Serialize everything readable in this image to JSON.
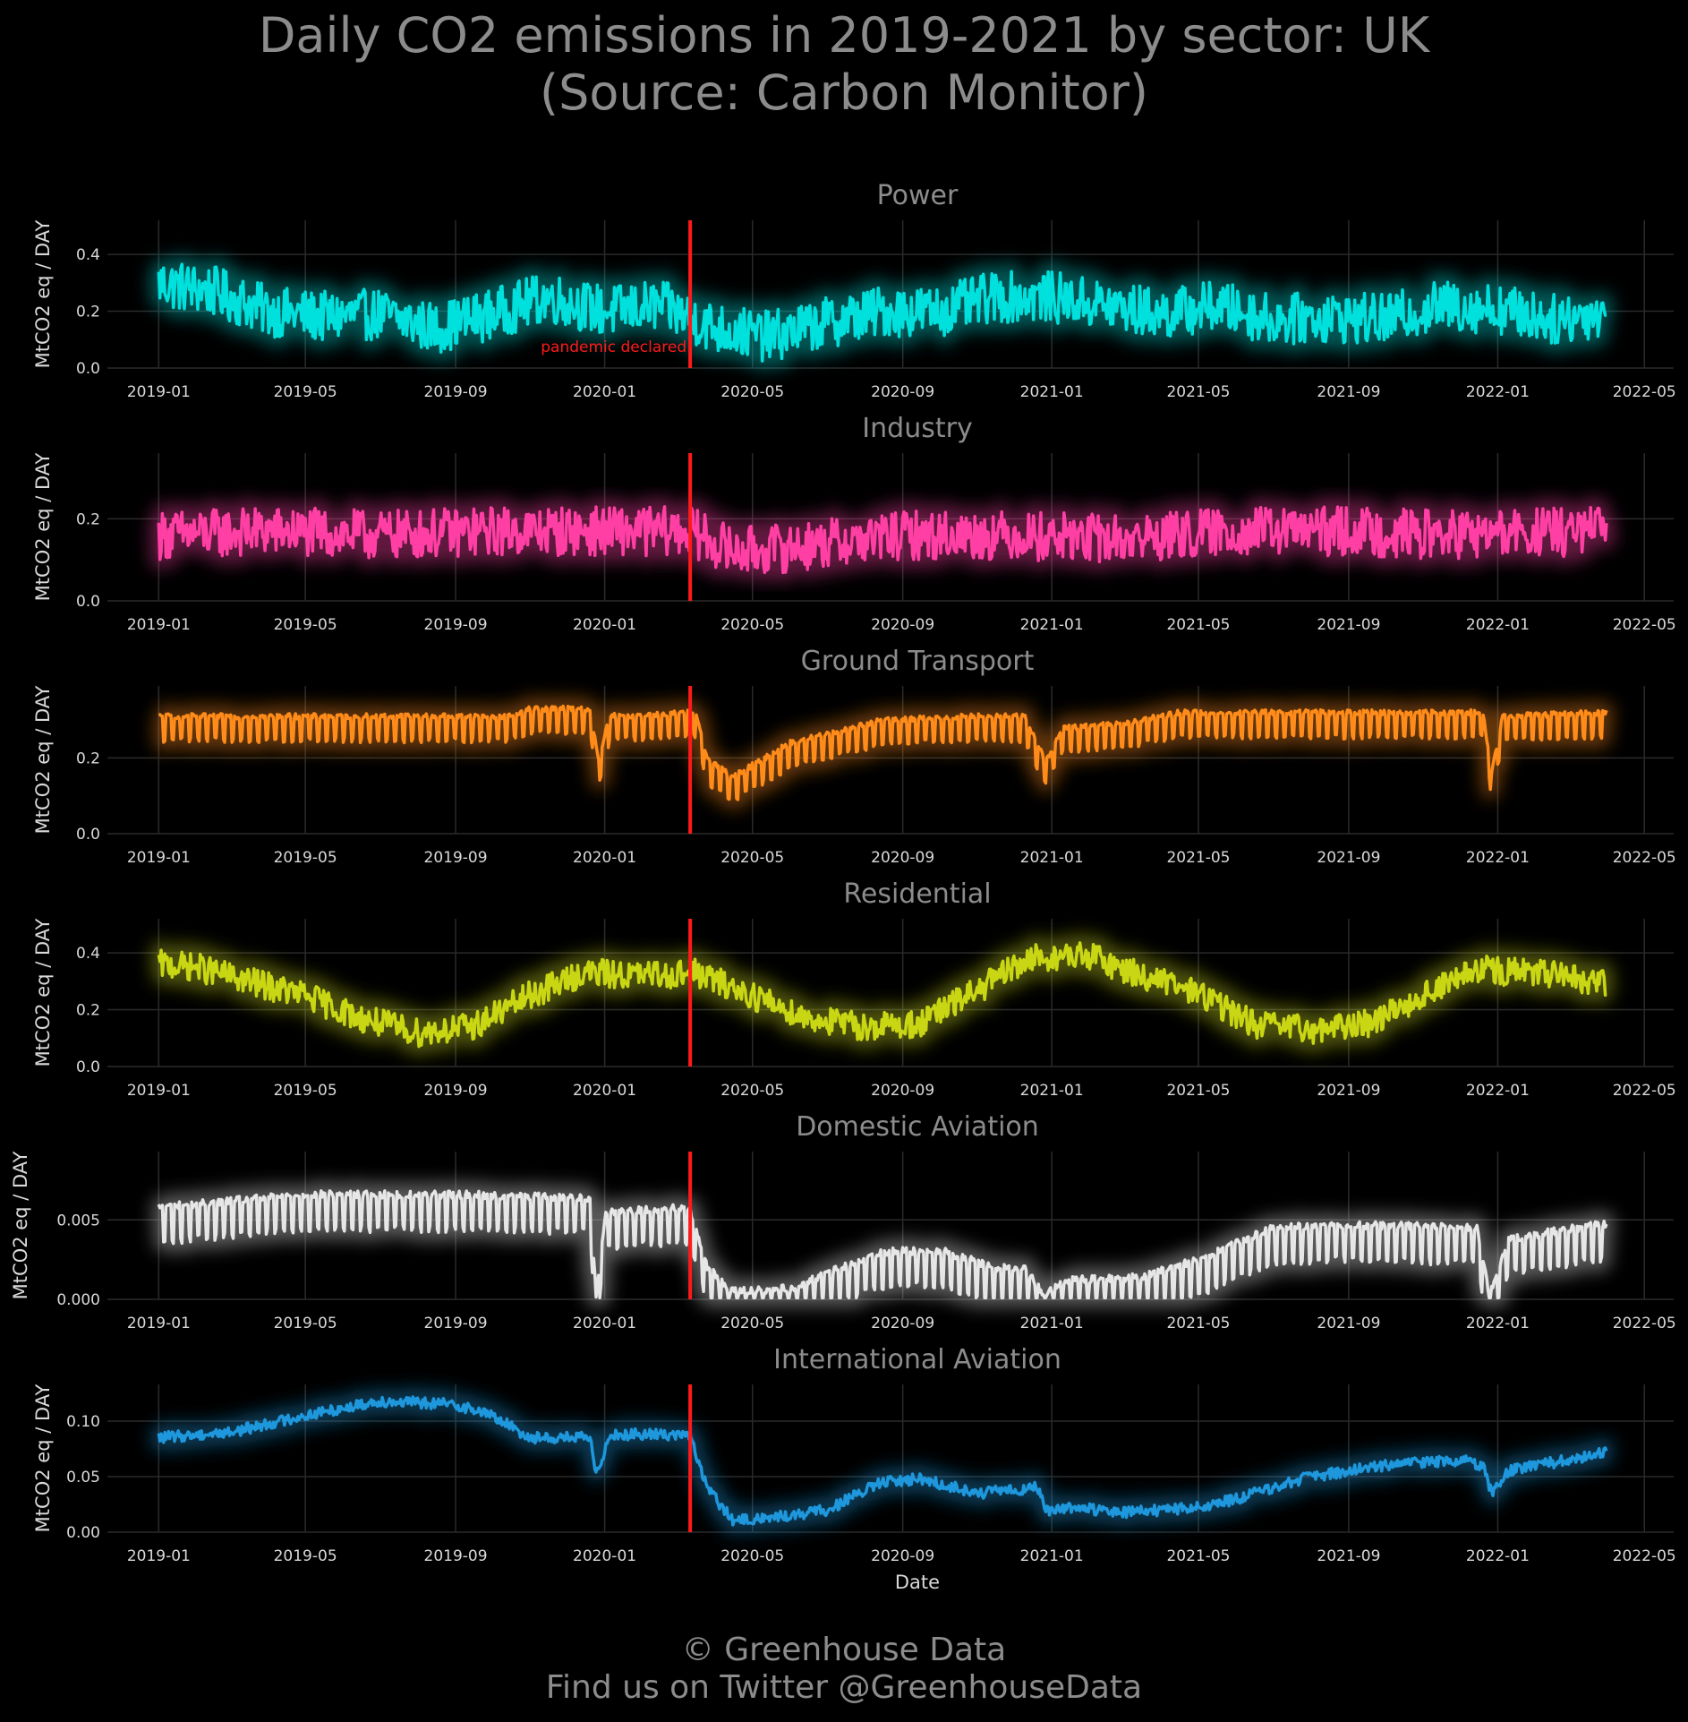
{
  "title": {
    "line1": "Daily CO2 emissions in 2019-2021 by sector: UK",
    "line2": "(Source: Carbon Monitor)"
  },
  "footer": {
    "line1": "© Greenhouse Data",
    "line2": "Find us on Twitter @GreenhouseData"
  },
  "colors": {
    "background": "#000000",
    "text": "#8c8c8c",
    "grid": "#2a2a2a",
    "event_line": "#ff1a1a"
  },
  "chart_data": [
    {
      "type": "line",
      "title": "Power",
      "color": "#00e0dc",
      "ylabel": "MtCO2 eq / DAY",
      "xlabel": "",
      "yticks": [
        "0.0",
        "0.2",
        "0.4"
      ],
      "ytick_values": [
        0.0,
        0.2,
        0.4
      ],
      "ylim": [
        0,
        0.52
      ],
      "xlim": [
        "2018-11-20",
        "2022-05-25"
      ],
      "xticks": [
        "2019-01",
        "2019-05",
        "2019-09",
        "2020-01",
        "2020-05",
        "2020-09",
        "2021-01",
        "2021-05",
        "2021-09",
        "2022-01",
        "2022-05"
      ],
      "x": [
        "2019-01-01",
        "2019-02-15",
        "2019-04-01",
        "2019-05-15",
        "2019-07-01",
        "2019-08-15",
        "2019-10-01",
        "2019-11-15",
        "2020-01-01",
        "2020-02-15",
        "2020-04-01",
        "2020-05-15",
        "2020-07-01",
        "2020-08-15",
        "2020-10-01",
        "2020-11-15",
        "2021-01-01",
        "2021-02-15",
        "2021-04-01",
        "2021-05-15",
        "2021-07-01",
        "2021-08-15",
        "2021-10-01",
        "2021-11-15",
        "2022-01-01",
        "2022-02-15",
        "2022-03-31"
      ],
      "y": [
        0.3,
        0.27,
        0.2,
        0.18,
        0.19,
        0.14,
        0.19,
        0.25,
        0.2,
        0.22,
        0.14,
        0.11,
        0.16,
        0.2,
        0.2,
        0.25,
        0.25,
        0.22,
        0.19,
        0.22,
        0.17,
        0.18,
        0.17,
        0.22,
        0.21,
        0.17,
        0.2
      ],
      "variation": 0.09,
      "series_name": "",
      "annotation": {
        "x": "2020-03-11",
        "text": "pandemic declared"
      }
    },
    {
      "type": "line",
      "title": "Industry",
      "color": "#ff3fa4",
      "ylabel": "MtCO2 eq / DAY",
      "xlabel": "",
      "yticks": [
        "0.0",
        "0.2"
      ],
      "ytick_values": [
        0.0,
        0.2
      ],
      "ylim": [
        0,
        0.36
      ],
      "xlim": [
        "2018-11-20",
        "2022-05-25"
      ],
      "xticks": [
        "2019-01",
        "2019-05",
        "2019-09",
        "2020-01",
        "2020-05",
        "2020-09",
        "2021-01",
        "2021-05",
        "2021-09",
        "2022-01",
        "2022-05"
      ],
      "x": [
        "2019-01-01",
        "2019-04-01",
        "2019-07-01",
        "2019-10-01",
        "2020-01-01",
        "2020-03-11",
        "2020-04-15",
        "2020-06-01",
        "2020-09-01",
        "2020-12-01",
        "2021-03-01",
        "2021-06-01",
        "2021-09-01",
        "2021-12-01",
        "2022-03-31"
      ],
      "y": [
        0.16,
        0.17,
        0.16,
        0.17,
        0.17,
        0.17,
        0.12,
        0.13,
        0.16,
        0.16,
        0.15,
        0.17,
        0.17,
        0.16,
        0.17
      ],
      "variation": 0.06,
      "series_name": ""
    },
    {
      "type": "line",
      "title": "Ground Transport",
      "color": "#ff8c1a",
      "ylabel": "MtCO2 eq / DAY",
      "xlabel": "",
      "yticks": [
        "0.0",
        "0.2"
      ],
      "ytick_values": [
        0.0,
        0.2
      ],
      "ylim": [
        0,
        0.39
      ],
      "xlim": [
        "2018-11-20",
        "2022-05-25"
      ],
      "xticks": [
        "2019-01",
        "2019-05",
        "2019-09",
        "2020-01",
        "2020-05",
        "2020-09",
        "2021-01",
        "2021-05",
        "2021-09",
        "2022-01",
        "2022-05"
      ],
      "x": [
        "2019-01-01",
        "2019-10-15",
        "2019-11-01",
        "2019-12-20",
        "2019-12-27",
        "2020-01-05",
        "2020-03-15",
        "2020-03-25",
        "2020-04-15",
        "2020-06-01",
        "2020-08-15",
        "2020-11-01",
        "2020-12-10",
        "2020-12-27",
        "2021-01-10",
        "2021-03-01",
        "2021-04-15",
        "2021-12-20",
        "2021-12-27",
        "2022-01-05",
        "2022-03-31"
      ],
      "y": [
        0.31,
        0.31,
        0.33,
        0.33,
        0.19,
        0.31,
        0.32,
        0.2,
        0.15,
        0.24,
        0.3,
        0.31,
        0.31,
        0.19,
        0.28,
        0.29,
        0.32,
        0.32,
        0.16,
        0.31,
        0.32
      ],
      "variation": 0.035,
      "series_name": ""
    },
    {
      "type": "line",
      "title": "Residential",
      "color": "#c8d613",
      "ylabel": "MtCO2 eq / DAY",
      "xlabel": "",
      "yticks": [
        "0.0",
        "0.2",
        "0.4"
      ],
      "ytick_values": [
        0.0,
        0.2,
        0.4
      ],
      "ylim": [
        0,
        0.52
      ],
      "xlim": [
        "2018-11-20",
        "2022-05-25"
      ],
      "xticks": [
        "2019-01",
        "2019-05",
        "2019-09",
        "2020-01",
        "2020-05",
        "2020-09",
        "2021-01",
        "2021-05",
        "2021-09",
        "2022-01",
        "2022-05"
      ],
      "x": [
        "2019-01-01",
        "2019-02-01",
        "2019-03-15",
        "2019-05-01",
        "2019-06-15",
        "2019-08-01",
        "2019-09-15",
        "2019-11-01",
        "2019-12-15",
        "2020-02-01",
        "2020-03-15",
        "2020-05-01",
        "2020-06-15",
        "2020-08-01",
        "2020-09-15",
        "2020-11-01",
        "2020-12-15",
        "2021-02-01",
        "2021-03-15",
        "2021-05-01",
        "2021-06-15",
        "2021-08-01",
        "2021-09-15",
        "2021-11-01",
        "2021-12-15",
        "2022-02-01",
        "2022-03-31"
      ],
      "y": [
        0.36,
        0.35,
        0.3,
        0.25,
        0.17,
        0.12,
        0.14,
        0.25,
        0.33,
        0.32,
        0.33,
        0.25,
        0.17,
        0.14,
        0.15,
        0.27,
        0.38,
        0.39,
        0.32,
        0.26,
        0.15,
        0.13,
        0.15,
        0.25,
        0.34,
        0.33,
        0.29
      ],
      "variation": 0.05,
      "series_name": ""
    },
    {
      "type": "line",
      "title": "Domestic Aviation",
      "color": "#e6e6e6",
      "ylabel": "MtCO2 eq / DAY",
      "xlabel": "",
      "yticks": [
        "0.000",
        "0.005"
      ],
      "ytick_values": [
        0.0,
        0.005
      ],
      "ylim": [
        0,
        0.0093
      ],
      "xlim": [
        "2018-11-20",
        "2022-05-25"
      ],
      "xticks": [
        "2019-01",
        "2019-05",
        "2019-09",
        "2020-01",
        "2020-05",
        "2020-09",
        "2021-01",
        "2021-05",
        "2021-09",
        "2022-01",
        "2022-05"
      ],
      "x": [
        "2019-01-01",
        "2019-05-01",
        "2019-09-01",
        "2019-12-20",
        "2019-12-25",
        "2020-01-02",
        "2020-03-10",
        "2020-03-25",
        "2020-04-15",
        "2020-06-01",
        "2020-08-15",
        "2020-10-01",
        "2020-11-15",
        "2020-12-10",
        "2020-12-25",
        "2021-01-15",
        "2021-03-15",
        "2021-05-01",
        "2021-07-01",
        "2021-09-01",
        "2021-12-15",
        "2021-12-25",
        "2022-01-10",
        "2022-03-31"
      ],
      "y": [
        0.0058,
        0.0066,
        0.0066,
        0.0064,
        0.0003,
        0.0055,
        0.0058,
        0.002,
        0.0005,
        0.0007,
        0.003,
        0.0031,
        0.002,
        0.002,
        0.0003,
        0.0012,
        0.0014,
        0.0025,
        0.0045,
        0.0047,
        0.0045,
        0.0003,
        0.0038,
        0.0048
      ],
      "variation": 0.0012,
      "series_name": ""
    },
    {
      "type": "line",
      "title": "International Aviation",
      "color": "#1e97dc",
      "ylabel": "MtCO2 eq / DAY",
      "xlabel": "Date",
      "yticks": [
        "0.00",
        "0.05",
        "0.10"
      ],
      "ytick_values": [
        0.0,
        0.05,
        0.1
      ],
      "ylim": [
        0,
        0.133
      ],
      "xlim": [
        "2018-11-20",
        "2022-05-25"
      ],
      "xticks": [
        "2019-01",
        "2019-05",
        "2019-09",
        "2020-01",
        "2020-05",
        "2020-09",
        "2021-01",
        "2021-05",
        "2021-09",
        "2022-01",
        "2022-05"
      ],
      "x": [
        "2019-01-01",
        "2019-03-01",
        "2019-05-01",
        "2019-07-01",
        "2019-09-01",
        "2019-10-01",
        "2019-11-01",
        "2019-12-20",
        "2019-12-25",
        "2020-01-05",
        "2020-03-10",
        "2020-03-25",
        "2020-04-15",
        "2020-06-01",
        "2020-07-01",
        "2020-08-15",
        "2020-09-15",
        "2020-11-01",
        "2020-12-20",
        "2020-12-27",
        "2021-01-15",
        "2021-03-01",
        "2021-05-01",
        "2021-06-01",
        "2021-08-01",
        "2021-10-01",
        "2021-12-01",
        "2021-12-20",
        "2021-12-27",
        "2022-01-10",
        "2022-03-31"
      ],
      "y": [
        0.085,
        0.09,
        0.105,
        0.118,
        0.115,
        0.105,
        0.085,
        0.085,
        0.05,
        0.088,
        0.088,
        0.04,
        0.01,
        0.015,
        0.02,
        0.045,
        0.048,
        0.035,
        0.04,
        0.02,
        0.022,
        0.018,
        0.022,
        0.03,
        0.05,
        0.06,
        0.065,
        0.06,
        0.035,
        0.055,
        0.072
      ],
      "variation": 0.005,
      "series_name": ""
    }
  ]
}
